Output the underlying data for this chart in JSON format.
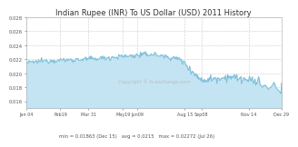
{
  "title": "Indian Rupee (INR) To US Dollar (USD) 2011 History",
  "title_fontsize": 6.0,
  "ytick_labels": [
    "0.02",
    "0.022",
    "0.024",
    "0.026",
    "0.028"
  ],
  "xtick_labels": [
    "Jan 04",
    "Feb19",
    "Mar 31",
    "May19",
    "Jun09",
    "Aug 15",
    "Sep08",
    "Nov 14",
    "Dec 29"
  ],
  "stats_text": "min = 0.01863 (Dec 15)   avg = 0.0215   max = 0.02272 (Jul 26)",
  "copyright_text": "Copyright © fs-exchange.com",
  "line_color": "#7bbfd8",
  "fill_color": "#c5e4f3",
  "background_color": "#ffffff",
  "grid_color": "#cccccc",
  "ylim_min": 0.015,
  "ylim_max": 0.028
}
